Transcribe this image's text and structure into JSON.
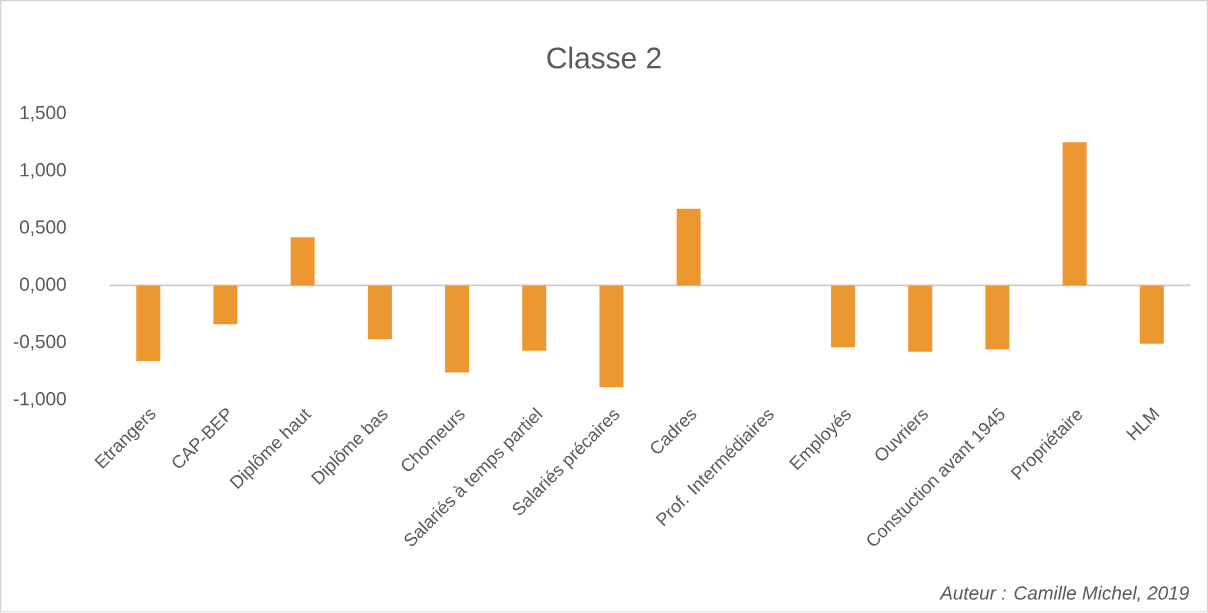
{
  "chart_data": {
    "type": "bar",
    "title": "Classe 2",
    "categories": [
      "Etrangers",
      "CAP-BEP",
      "Diplôme haut",
      "Diplôme bas",
      "Chomeurs",
      "Salariés à temps partiel",
      "Salariés précaires",
      "Cadres",
      "Prof. Intermédiaires",
      "Employés",
      "Ouvriers",
      "Constuction avant 1945",
      "Propriétaire",
      "HLM"
    ],
    "values": [
      -0.66,
      -0.34,
      0.42,
      -0.47,
      -0.76,
      -0.57,
      -0.89,
      0.67,
      0.0,
      -0.54,
      -0.58,
      -0.56,
      1.25,
      -0.51
    ],
    "color": "#ed9731",
    "ylim": [
      -1,
      1.5
    ],
    "yticks": [
      {
        "value": -1,
        "label": "-1,000"
      },
      {
        "value": -0.5,
        "label": "-0,500"
      },
      {
        "value": 0,
        "label": "0,000"
      },
      {
        "value": 0.5,
        "label": "0,500"
      },
      {
        "value": 1,
        "label": "1,000"
      },
      {
        "value": 1.5,
        "label": "1,500"
      }
    ],
    "annotations": [
      "Auteur : Camille Michel, 2019"
    ]
  }
}
